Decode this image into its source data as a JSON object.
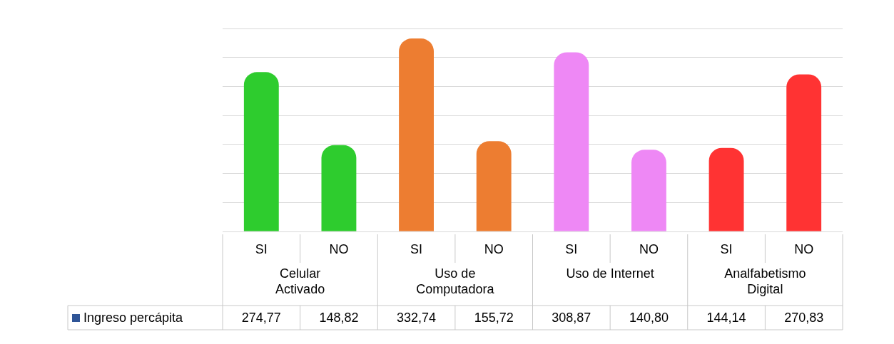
{
  "chart_data": {
    "type": "bar",
    "categories": [
      "SI",
      "NO",
      "SI",
      "NO",
      "SI",
      "NO",
      "SI",
      "NO"
    ],
    "series": [
      {
        "name": "Ingreso percápita",
        "values": [
          274.77,
          148.82,
          332.74,
          155.72,
          308.87,
          140.8,
          144.14,
          270.83
        ],
        "value_labels": [
          "274,77",
          "148,82",
          "332,74",
          "155,72",
          "308,87",
          "140,80",
          "144,14",
          "270,83"
        ],
        "colors": [
          "#2ecc2e",
          "#2ecc2e",
          "#ed7d31",
          "#ed7d31",
          "#ee88f5",
          "#ee88f5",
          "#ff3333",
          "#ff3333"
        ]
      }
    ],
    "annotations": [
      "Celular\nActivado",
      "Uso de\nComputadora",
      "Uso de Internet",
      "Analfabetismo\nDigital"
    ],
    "grid": "y",
    "tick_labels": "x",
    "legend": "bottom"
  }
}
